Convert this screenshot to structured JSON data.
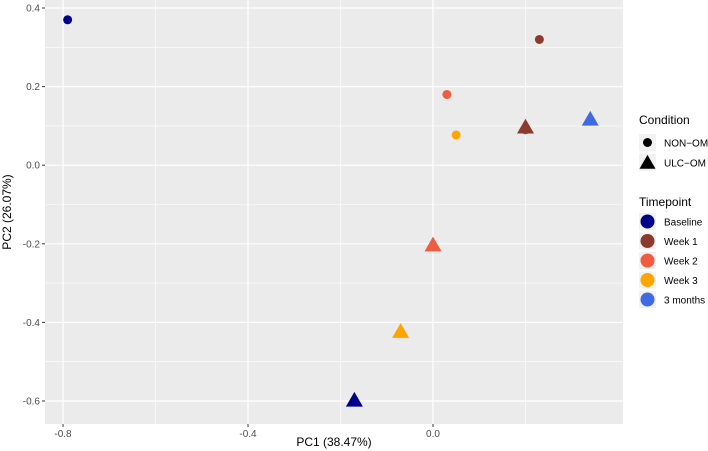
{
  "chart_data": {
    "type": "scatter",
    "title": "",
    "xlabel": "PC1 (38.47%)",
    "ylabel": "PC2 (26.07%)",
    "xlim": [
      -0.8,
      0.42
    ],
    "ylim": [
      -0.62,
      0.41
    ],
    "x_ticks": [
      -0.8,
      -0.4,
      0.0
    ],
    "x_tick_labels": [
      "-0.8",
      "-0.4",
      "0.0"
    ],
    "y_ticks": [
      0.4,
      0.2,
      0.0,
      -0.2,
      -0.4,
      -0.6
    ],
    "y_tick_labels": [
      "0.4",
      "0.2",
      "0.0",
      "-0.2",
      "-0.4",
      "-0.6"
    ],
    "grid": true,
    "legend_position": "right",
    "legends": {
      "condition": {
        "title": "Condition",
        "items": [
          {
            "label": "NON−OM",
            "shape": "circle"
          },
          {
            "label": "ULC−OM",
            "shape": "triangle"
          }
        ]
      },
      "timepoint": {
        "title": "Timepoint",
        "items": [
          {
            "label": "Baseline",
            "color": "#00008B"
          },
          {
            "label": "Week 1",
            "color": "#8B3A2E"
          },
          {
            "label": "Week 2",
            "color": "#EE5C42"
          },
          {
            "label": "Week 3",
            "color": "#FFA500"
          },
          {
            "label": "3 months",
            "color": "#4169E1"
          }
        ]
      }
    },
    "points": [
      {
        "x": -0.79,
        "y": 0.37,
        "condition": "NON−OM",
        "timepoint": "Baseline"
      },
      {
        "x": 0.23,
        "y": 0.32,
        "condition": "NON−OM",
        "timepoint": "Week 1"
      },
      {
        "x": 0.03,
        "y": 0.18,
        "condition": "NON−OM",
        "timepoint": "Week 2"
      },
      {
        "x": 0.05,
        "y": 0.077,
        "condition": "NON−OM",
        "timepoint": "Week 3"
      },
      {
        "x": 0.2,
        "y": 0.09,
        "condition": "NON−OM",
        "timepoint": "3 months"
      },
      {
        "x": -0.17,
        "y": -0.6,
        "condition": "ULC−OM",
        "timepoint": "Baseline"
      },
      {
        "x": 0.2,
        "y": 0.095,
        "condition": "ULC−OM",
        "timepoint": "Week 1"
      },
      {
        "x": 0.0,
        "y": -0.205,
        "condition": "ULC−OM",
        "timepoint": "Week 2"
      },
      {
        "x": -0.07,
        "y": -0.425,
        "condition": "ULC−OM",
        "timepoint": "Week 3"
      },
      {
        "x": 0.34,
        "y": 0.115,
        "condition": "ULC−OM",
        "timepoint": "3 months"
      }
    ]
  }
}
